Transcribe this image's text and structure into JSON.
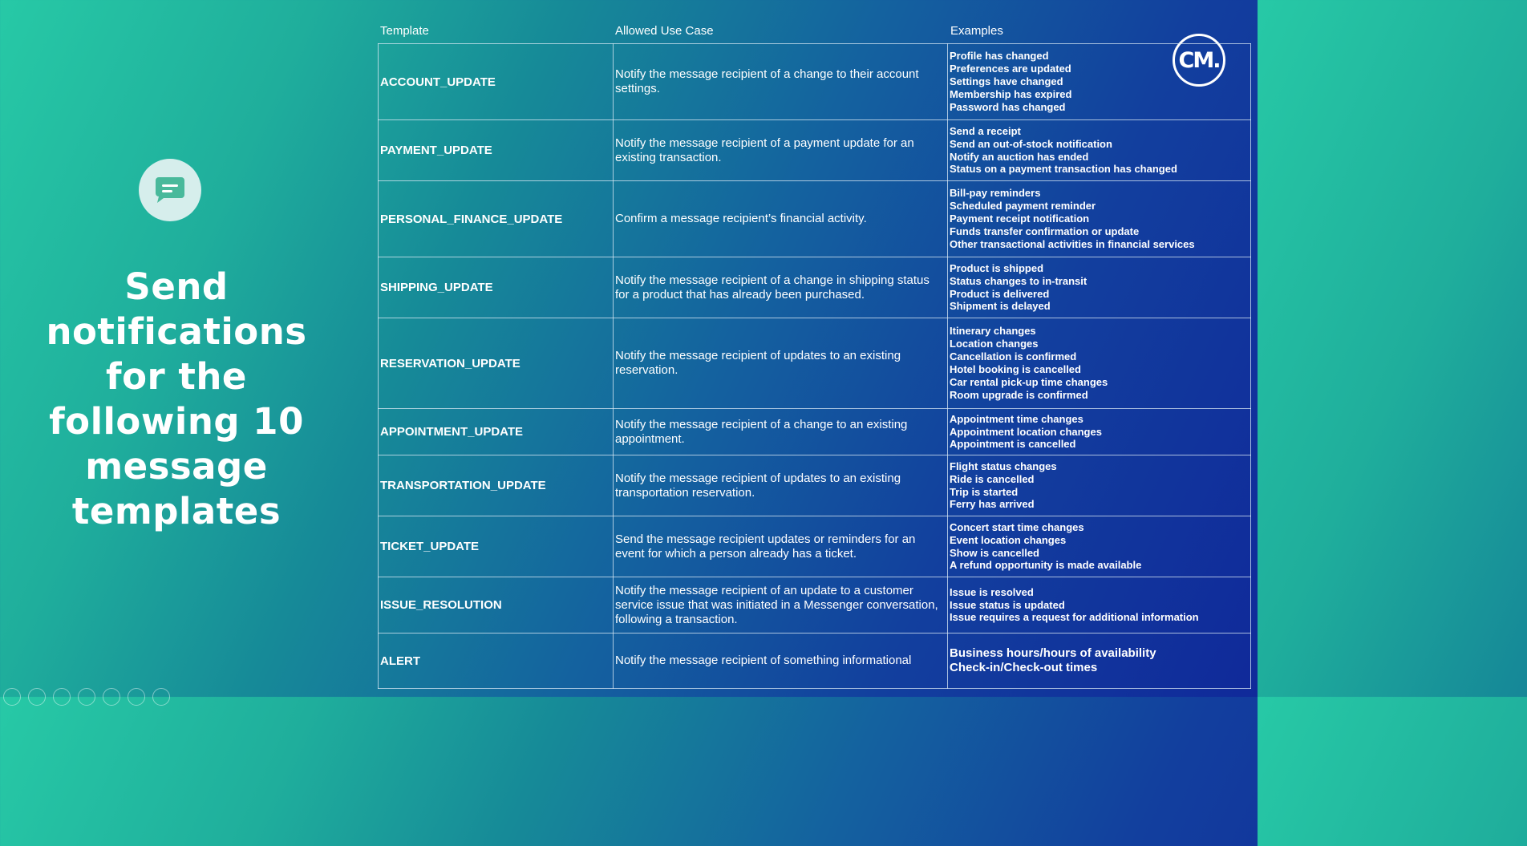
{
  "headline": "Send notifications for the following 10 message templates",
  "brand": {
    "logo_text": "CM.",
    "colors": {
      "gradient_start": "#27c9a6",
      "gradient_end": "#10299a",
      "badge_bg": "#d6eeec",
      "icon_green": "#48b99b"
    }
  },
  "icons": {
    "chat": "chat-bubble-icon",
    "logo": "cm-logo"
  },
  "table": {
    "headers": {
      "template": "Template",
      "use_case": "Allowed Use Case",
      "examples": "Examples"
    },
    "rows": [
      {
        "template": "ACCOUNT_UPDATE",
        "use_case": "Notify the message recipient of a change to their account settings.",
        "examples": [
          "Profile has changed",
          "Preferences are updated",
          "Settings have changed",
          "Membership has expired",
          "Password has changed"
        ]
      },
      {
        "template": "PAYMENT_UPDATE",
        "use_case": "Notify the message recipient of a payment update for an existing transaction.",
        "examples": [
          "Send a receipt",
          "Send an out-of-stock notification",
          "Notify an auction has ended",
          "Status on a payment transaction has changed"
        ]
      },
      {
        "template": "PERSONAL_FINANCE_UPDATE",
        "use_case": "Confirm a message recipient’s financial activity.",
        "examples": [
          "Bill-pay reminders",
          "Scheduled payment reminder",
          "Payment receipt notification",
          "Funds transfer confirmation or update",
          "Other transactional activities in financial services"
        ]
      },
      {
        "template": "SHIPPING_UPDATE",
        "use_case": "Notify the message recipient of a change in shipping status for a product that has already been purchased.",
        "examples": [
          "Product is shipped",
          "Status changes to in-transit",
          "Product is delivered",
          "Shipment is delayed"
        ]
      },
      {
        "template": "RESERVATION_UPDATE",
        "use_case": "Notify the message recipient of updates to an existing reservation.",
        "examples": [
          "Itinerary changes",
          "Location changes",
          "Cancellation is confirmed",
          "Hotel booking is cancelled",
          "Car rental pick-up time changes",
          "Room upgrade is confirmed"
        ]
      },
      {
        "template": "APPOINTMENT_UPDATE",
        "use_case": "Notify the message recipient of a change to an existing appointment.",
        "examples": [
          "Appointment time changes",
          "Appointment location changes",
          "Appointment is cancelled"
        ]
      },
      {
        "template": "TRANSPORTATION_UPDATE",
        "use_case": "Notify the message recipient of updates to an existing transportation reservation.",
        "examples": [
          "Flight status changes",
          "Ride is cancelled",
          "Trip is started",
          "Ferry has arrived"
        ]
      },
      {
        "template": "TICKET_UPDATE",
        "use_case": "Send the message recipient updates or reminders for an event for which a person already has a ticket.",
        "examples": [
          "Concert start time changes",
          "Event location changes",
          "Show is cancelled",
          "A refund opportunity is made available"
        ]
      },
      {
        "template": "ISSUE_RESOLUTION",
        "use_case": "Notify the message recipient of an update to a customer service issue that was initiated in a Messenger conversation, following a transaction.",
        "examples": [
          "Issue is resolved",
          "Issue status is updated",
          "Issue requires a request for additional information"
        ]
      },
      {
        "template": "ALERT",
        "use_case": "Notify the message recipient of something informational",
        "examples": [
          "Business hours/hours of availability",
          "Check-in/Check-out times"
        ]
      }
    ]
  }
}
